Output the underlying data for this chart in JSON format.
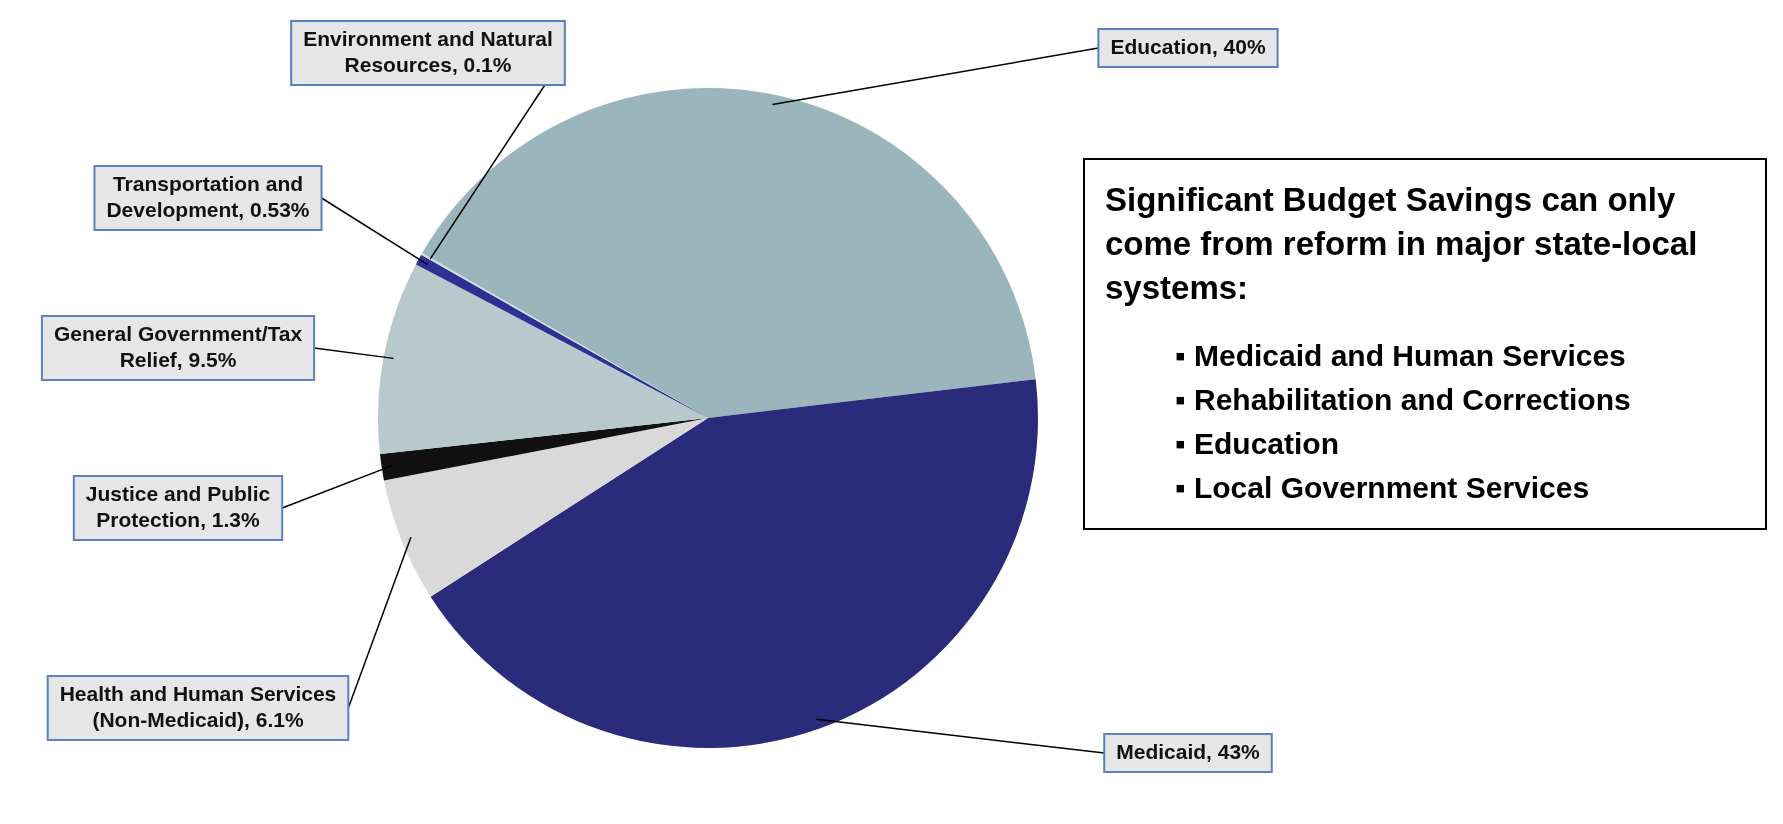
{
  "chart_data": {
    "type": "pie",
    "categories": [
      "Education",
      "Medicaid",
      "Health and Human Services (Non-Medicaid)",
      "Justice and Public Protection",
      "General Government/Tax Relief",
      "Transportation and Development",
      "Environment and Natural Resources"
    ],
    "values": [
      40,
      43,
      6.1,
      1.3,
      9.5,
      0.53,
      0.1
    ],
    "value_labels": [
      "40%",
      "43%",
      "6.1%",
      "1.3%",
      "9.5%",
      "0.53%",
      "0.1%"
    ],
    "colors": [
      "#9ab6bc",
      "#2b2b7b",
      "#d9d9d9",
      "#111111",
      "#b8c9cd",
      "#2e3192",
      "#c9dde1"
    ],
    "legend": false,
    "annotations": [
      "Significant Budget Savings can only come from reform in major state-local systems:",
      "▪ Medicaid and Human Services",
      "▪ Rehabilitation and Corrections",
      "▪ Education",
      "▪ Local Government Services"
    ]
  }
}
